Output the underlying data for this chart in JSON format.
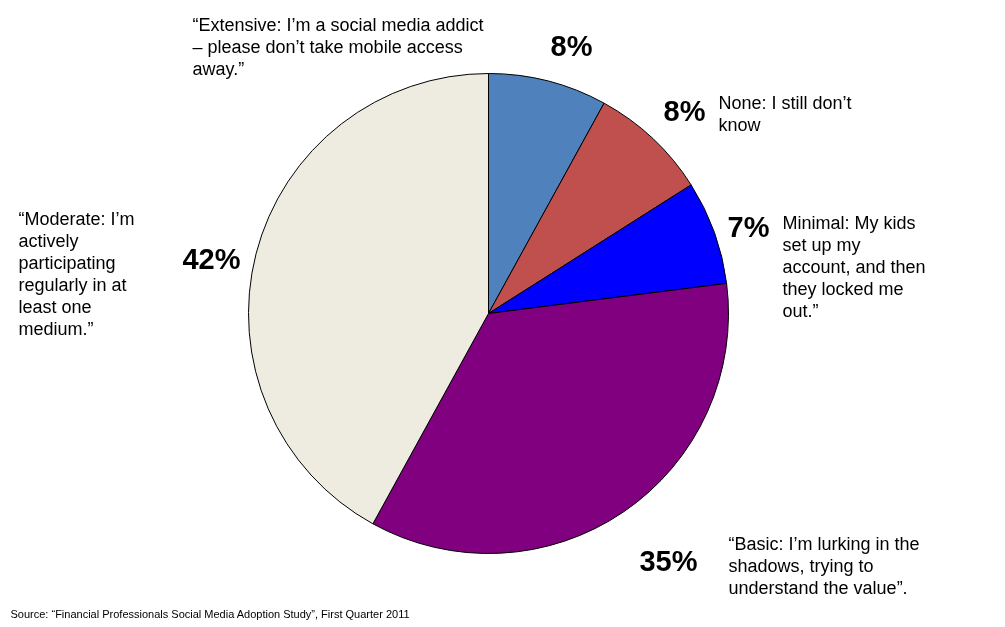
{
  "chart_data": {
    "type": "pie",
    "categories": [
      "“Extensive: I’m a social media addict – please don’t take mobile access away.”",
      "None: I still don’t know",
      "Minimal: My kids set up my account, and then they locked me out.”",
      "“Basic: I’m lurking in the shadows, trying to understand the value”.",
      "“Moderate: I’m actively participating regularly in at least one medium.”"
    ],
    "values": [
      8,
      8,
      7,
      35,
      42
    ],
    "colors": [
      "#4f81bd",
      "#c0504d",
      "#0000ff",
      "#800080",
      "#eeece1"
    ],
    "value_labels": [
      "8%",
      "8%",
      "7%",
      "35%",
      "42%"
    ],
    "annotations": [
      "Source: “Financial Professionals Social Media Adoption Study”, First Quarter 2011"
    ]
  }
}
